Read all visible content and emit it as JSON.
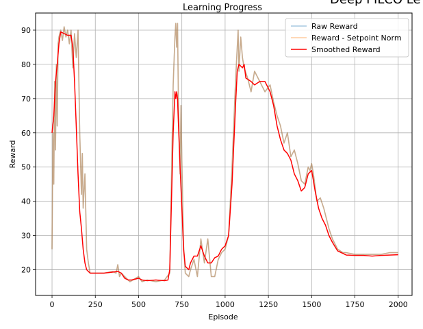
{
  "figure": {
    "suptitle": "Deep PILCO Le"
  },
  "chart_data": {
    "type": "line",
    "title": "Learning Progress",
    "xlabel": "Episode",
    "ylabel": "Reward",
    "xlim": [
      -95,
      2080
    ],
    "ylim": [
      12.5,
      95
    ],
    "x_ticks": [
      0,
      250,
      500,
      750,
      1000,
      1250,
      1500,
      1750,
      2000
    ],
    "y_ticks": [
      20,
      30,
      40,
      50,
      60,
      70,
      80,
      90
    ],
    "grid": true,
    "legend_position": "top-right",
    "series": [
      {
        "name": "Raw Reward",
        "color": "#1f77b4",
        "points": [
          [
            0,
            26
          ],
          [
            5,
            60
          ],
          [
            10,
            45
          ],
          [
            15,
            75
          ],
          [
            20,
            55
          ],
          [
            25,
            80
          ],
          [
            30,
            62
          ],
          [
            35,
            86
          ],
          [
            40,
            88
          ],
          [
            50,
            90
          ],
          [
            60,
            87
          ],
          [
            70,
            91
          ],
          [
            80,
            88
          ],
          [
            90,
            90
          ],
          [
            100,
            86
          ],
          [
            110,
            90
          ],
          [
            120,
            79
          ],
          [
            130,
            89
          ],
          [
            140,
            82
          ],
          [
            150,
            90
          ],
          [
            160,
            60
          ],
          [
            170,
            42
          ],
          [
            175,
            54
          ],
          [
            180,
            38
          ],
          [
            190,
            48
          ],
          [
            200,
            26
          ],
          [
            210,
            22
          ],
          [
            220,
            19
          ],
          [
            250,
            19
          ],
          [
            300,
            19
          ],
          [
            350,
            19.5
          ],
          [
            370,
            19
          ],
          [
            380,
            21.5
          ],
          [
            390,
            18
          ],
          [
            400,
            19
          ],
          [
            420,
            18
          ],
          [
            450,
            16.5
          ],
          [
            500,
            18
          ],
          [
            520,
            16.5
          ],
          [
            550,
            17
          ],
          [
            600,
            16.5
          ],
          [
            650,
            17
          ],
          [
            680,
            19
          ],
          [
            700,
            74
          ],
          [
            710,
            88
          ],
          [
            715,
            92
          ],
          [
            720,
            85
          ],
          [
            725,
            92
          ],
          [
            730,
            70
          ],
          [
            740,
            48
          ],
          [
            745,
            68
          ],
          [
            750,
            52
          ],
          [
            760,
            27
          ],
          [
            770,
            19
          ],
          [
            790,
            18
          ],
          [
            800,
            20
          ],
          [
            820,
            23
          ],
          [
            840,
            18
          ],
          [
            860,
            29
          ],
          [
            880,
            22
          ],
          [
            900,
            29
          ],
          [
            920,
            18
          ],
          [
            940,
            18
          ],
          [
            960,
            23
          ],
          [
            980,
            25
          ],
          [
            1000,
            26
          ],
          [
            1020,
            30
          ],
          [
            1040,
            50
          ],
          [
            1060,
            75
          ],
          [
            1070,
            85
          ],
          [
            1075,
            90
          ],
          [
            1080,
            78
          ],
          [
            1090,
            88
          ],
          [
            1100,
            82
          ],
          [
            1110,
            79
          ],
          [
            1130,
            76
          ],
          [
            1150,
            72
          ],
          [
            1170,
            78
          ],
          [
            1200,
            75
          ],
          [
            1230,
            72
          ],
          [
            1260,
            74
          ],
          [
            1280,
            69
          ],
          [
            1300,
            65
          ],
          [
            1320,
            62
          ],
          [
            1340,
            57
          ],
          [
            1360,
            60
          ],
          [
            1380,
            53
          ],
          [
            1400,
            55
          ],
          [
            1420,
            51
          ],
          [
            1440,
            46
          ],
          [
            1460,
            45
          ],
          [
            1480,
            50
          ],
          [
            1490,
            49
          ],
          [
            1500,
            51
          ],
          [
            1510,
            48
          ],
          [
            1520,
            44
          ],
          [
            1530,
            40
          ],
          [
            1550,
            41
          ],
          [
            1570,
            38
          ],
          [
            1600,
            32
          ],
          [
            1620,
            29
          ],
          [
            1650,
            26
          ],
          [
            1680,
            25
          ],
          [
            1700,
            25
          ],
          [
            1750,
            24.5
          ],
          [
            1800,
            24.5
          ],
          [
            1850,
            24.5
          ],
          [
            1900,
            24.5
          ],
          [
            1950,
            25
          ],
          [
            2000,
            25
          ]
        ]
      },
      {
        "name": "Reward - Setpoint Norm",
        "color": "#ff7f0e",
        "points": [
          [
            0,
            26
          ],
          [
            5,
            60
          ],
          [
            10,
            45
          ],
          [
            15,
            75
          ],
          [
            20,
            55
          ],
          [
            25,
            80
          ],
          [
            30,
            62
          ],
          [
            35,
            86
          ],
          [
            40,
            88
          ],
          [
            50,
            90
          ],
          [
            60,
            87
          ],
          [
            70,
            91
          ],
          [
            80,
            88
          ],
          [
            90,
            90
          ],
          [
            100,
            86
          ],
          [
            110,
            90
          ],
          [
            120,
            79
          ],
          [
            130,
            89
          ],
          [
            140,
            82
          ],
          [
            150,
            90
          ],
          [
            160,
            60
          ],
          [
            170,
            42
          ],
          [
            175,
            54
          ],
          [
            180,
            38
          ],
          [
            190,
            48
          ],
          [
            200,
            26
          ],
          [
            210,
            22
          ],
          [
            220,
            19
          ],
          [
            250,
            19
          ],
          [
            300,
            19
          ],
          [
            350,
            19.5
          ],
          [
            370,
            19
          ],
          [
            380,
            21.5
          ],
          [
            390,
            18
          ],
          [
            400,
            19
          ],
          [
            420,
            18
          ],
          [
            450,
            16.5
          ],
          [
            500,
            18
          ],
          [
            520,
            16.5
          ],
          [
            550,
            17
          ],
          [
            600,
            16.5
          ],
          [
            650,
            17
          ],
          [
            680,
            19
          ],
          [
            700,
            74
          ],
          [
            710,
            88
          ],
          [
            715,
            92
          ],
          [
            720,
            85
          ],
          [
            725,
            92
          ],
          [
            730,
            70
          ],
          [
            740,
            48
          ],
          [
            745,
            68
          ],
          [
            750,
            52
          ],
          [
            760,
            27
          ],
          [
            770,
            19
          ],
          [
            790,
            18
          ],
          [
            800,
            20
          ],
          [
            820,
            23
          ],
          [
            840,
            18
          ],
          [
            860,
            29
          ],
          [
            880,
            22
          ],
          [
            900,
            29
          ],
          [
            920,
            18
          ],
          [
            940,
            18
          ],
          [
            960,
            23
          ],
          [
            980,
            25
          ],
          [
            1000,
            26
          ],
          [
            1020,
            30
          ],
          [
            1040,
            50
          ],
          [
            1060,
            75
          ],
          [
            1070,
            85
          ],
          [
            1075,
            90
          ],
          [
            1080,
            78
          ],
          [
            1090,
            88
          ],
          [
            1100,
            82
          ],
          [
            1110,
            79
          ],
          [
            1130,
            76
          ],
          [
            1150,
            72
          ],
          [
            1170,
            78
          ],
          [
            1200,
            75
          ],
          [
            1230,
            72
          ],
          [
            1260,
            74
          ],
          [
            1280,
            69
          ],
          [
            1300,
            65
          ],
          [
            1320,
            62
          ],
          [
            1340,
            57
          ],
          [
            1360,
            60
          ],
          [
            1380,
            53
          ],
          [
            1400,
            55
          ],
          [
            1420,
            51
          ],
          [
            1440,
            46
          ],
          [
            1460,
            45
          ],
          [
            1480,
            50
          ],
          [
            1490,
            49
          ],
          [
            1500,
            51
          ],
          [
            1510,
            48
          ],
          [
            1520,
            44
          ],
          [
            1530,
            40
          ],
          [
            1550,
            41
          ],
          [
            1570,
            38
          ],
          [
            1600,
            32
          ],
          [
            1620,
            29
          ],
          [
            1650,
            26
          ],
          [
            1680,
            25
          ],
          [
            1700,
            25
          ],
          [
            1750,
            24.5
          ],
          [
            1800,
            24.5
          ],
          [
            1850,
            24.5
          ],
          [
            1900,
            24.5
          ],
          [
            1950,
            25
          ],
          [
            2000,
            25
          ]
        ]
      },
      {
        "name": "Smoothed Reward",
        "color": "#ff0000",
        "points": [
          [
            0,
            60
          ],
          [
            10,
            65
          ],
          [
            20,
            75
          ],
          [
            30,
            80
          ],
          [
            40,
            86
          ],
          [
            50,
            89.5
          ],
          [
            70,
            89
          ],
          [
            90,
            88.5
          ],
          [
            110,
            88.5
          ],
          [
            120,
            85
          ],
          [
            130,
            75
          ],
          [
            140,
            62
          ],
          [
            150,
            48
          ],
          [
            160,
            37
          ],
          [
            170,
            32
          ],
          [
            180,
            26
          ],
          [
            190,
            22
          ],
          [
            200,
            20
          ],
          [
            220,
            19
          ],
          [
            260,
            19
          ],
          [
            300,
            19
          ],
          [
            350,
            19.3
          ],
          [
            380,
            19.5
          ],
          [
            400,
            19
          ],
          [
            420,
            17.5
          ],
          [
            440,
            17
          ],
          [
            460,
            17
          ],
          [
            500,
            17.5
          ],
          [
            520,
            17
          ],
          [
            550,
            16.8
          ],
          [
            600,
            17
          ],
          [
            650,
            16.8
          ],
          [
            670,
            17
          ],
          [
            680,
            20
          ],
          [
            690,
            40
          ],
          [
            700,
            60
          ],
          [
            710,
            72
          ],
          [
            715,
            70
          ],
          [
            720,
            72
          ],
          [
            725,
            70
          ],
          [
            730,
            63
          ],
          [
            740,
            50
          ],
          [
            750,
            38
          ],
          [
            760,
            26
          ],
          [
            770,
            21
          ],
          [
            790,
            20
          ],
          [
            800,
            22
          ],
          [
            820,
            24
          ],
          [
            840,
            24
          ],
          [
            860,
            27
          ],
          [
            880,
            24
          ],
          [
            900,
            22
          ],
          [
            920,
            22
          ],
          [
            940,
            23.5
          ],
          [
            960,
            24
          ],
          [
            980,
            26
          ],
          [
            1000,
            27
          ],
          [
            1020,
            30
          ],
          [
            1040,
            45
          ],
          [
            1060,
            68
          ],
          [
            1070,
            78
          ],
          [
            1080,
            80
          ],
          [
            1100,
            79
          ],
          [
            1110,
            80
          ],
          [
            1120,
            76
          ],
          [
            1150,
            75
          ],
          [
            1170,
            74
          ],
          [
            1200,
            75
          ],
          [
            1230,
            75
          ],
          [
            1260,
            72
          ],
          [
            1280,
            68
          ],
          [
            1300,
            62
          ],
          [
            1320,
            58
          ],
          [
            1340,
            55
          ],
          [
            1360,
            54
          ],
          [
            1380,
            52
          ],
          [
            1400,
            48
          ],
          [
            1420,
            46
          ],
          [
            1440,
            43
          ],
          [
            1460,
            44
          ],
          [
            1480,
            48
          ],
          [
            1500,
            49
          ],
          [
            1510,
            46
          ],
          [
            1520,
            43
          ],
          [
            1540,
            38
          ],
          [
            1560,
            35
          ],
          [
            1580,
            33
          ],
          [
            1600,
            30
          ],
          [
            1620,
            28
          ],
          [
            1650,
            25.5
          ],
          [
            1700,
            24.3
          ],
          [
            1750,
            24.2
          ],
          [
            1800,
            24.2
          ],
          [
            1850,
            24
          ],
          [
            1900,
            24.2
          ],
          [
            1950,
            24.3
          ],
          [
            2000,
            24.4
          ]
        ]
      }
    ]
  }
}
